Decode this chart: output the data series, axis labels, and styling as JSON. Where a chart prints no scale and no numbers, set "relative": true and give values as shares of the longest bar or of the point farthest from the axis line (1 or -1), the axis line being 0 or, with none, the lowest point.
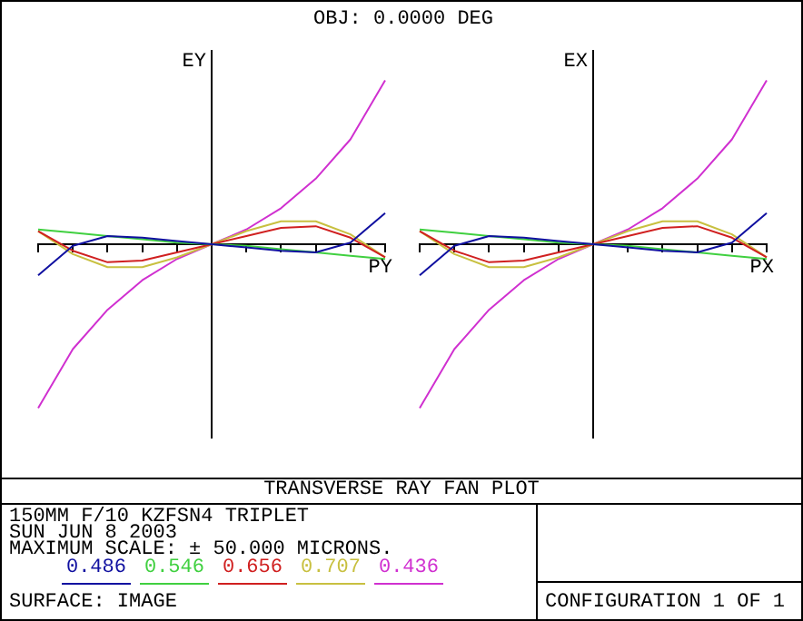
{
  "chart_data": [
    {
      "type": "line",
      "title": "OBJ: 0.0000 DEG",
      "xlabel": "PY",
      "ylabel": "EY",
      "relative": true,
      "categories": [
        null,
        null,
        null,
        null,
        null,
        null,
        null,
        null,
        null,
        null,
        null
      ],
      "series": [
        {
          "name": "0.486",
          "color": "#1010a0",
          "values": [
            -0.19,
            -0.01,
            0.05,
            0.04,
            0.02,
            0,
            -0.02,
            -0.04,
            -0.05,
            0.01,
            0.19
          ]
        },
        {
          "name": "0.546",
          "color": "#40d040",
          "values": [
            0.09,
            0.07,
            0.05,
            0.03,
            0.01,
            0,
            -0.01,
            -0.03,
            -0.05,
            -0.07,
            -0.09
          ]
        },
        {
          "name": "0.656",
          "color": "#d02020",
          "values": [
            0.08,
            -0.04,
            -0.11,
            -0.1,
            -0.05,
            0,
            0.05,
            0.1,
            0.11,
            0.04,
            -0.08
          ]
        },
        {
          "name": "0.707",
          "color": "#c8c040",
          "values": [
            0.08,
            -0.06,
            -0.14,
            -0.14,
            -0.08,
            0,
            0.08,
            0.14,
            0.14,
            0.06,
            -0.08
          ]
        },
        {
          "name": "0.436",
          "color": "#d030d0",
          "values": [
            -1,
            -0.64,
            -0.4,
            -0.22,
            -0.09,
            0,
            0.09,
            0.22,
            0.4,
            0.64,
            1
          ]
        }
      ],
      "legend": "bottom",
      "marker": "none",
      "annotations": [
        "TRANSVERSE RAY FAN PLOT",
        "150MM F/10 KZFSN4 TRIPLET",
        "SUN JUN 8 2003",
        "MAXIMUM SCALE: ± 50.000 MICRONS.",
        "SURFACE: IMAGE",
        "CONFIGURATION 1 OF 1"
      ]
    },
    {
      "type": "line",
      "xlabel": "PX",
      "ylabel": "EX",
      "relative": true,
      "categories": [
        null,
        null,
        null,
        null,
        null,
        null,
        null,
        null,
        null,
        null,
        null
      ],
      "series": [
        {
          "color": "#1010a0",
          "values": [
            -0.19,
            -0.01,
            0.05,
            0.04,
            0.02,
            0,
            -0.02,
            -0.04,
            -0.05,
            0.01,
            0.19
          ]
        },
        {
          "color": "#40d040",
          "values": [
            0.09,
            0.07,
            0.05,
            0.03,
            0.01,
            0,
            -0.01,
            -0.03,
            -0.05,
            -0.07,
            -0.09
          ]
        },
        {
          "color": "#d02020",
          "values": [
            0.08,
            -0.04,
            -0.11,
            -0.1,
            -0.05,
            0,
            0.05,
            0.1,
            0.11,
            0.04,
            -0.08
          ]
        },
        {
          "color": "#c8c040",
          "values": [
            0.08,
            -0.06,
            -0.14,
            -0.14,
            -0.08,
            0,
            0.08,
            0.14,
            0.14,
            0.06,
            -0.08
          ]
        },
        {
          "color": "#d030d0",
          "values": [
            -1,
            -0.64,
            -0.4,
            -0.22,
            -0.09,
            0,
            0.09,
            0.22,
            0.4,
            0.64,
            1
          ]
        }
      ],
      "marker": "none"
    }
  ]
}
